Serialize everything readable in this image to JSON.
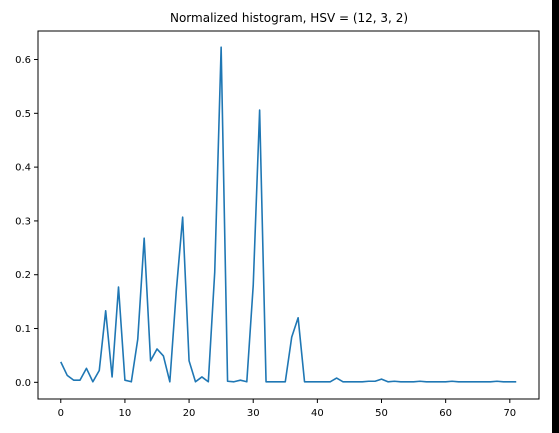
{
  "chart_data": {
    "type": "line",
    "title": "Normalized histogram, HSV = (12, 3, 2)",
    "xlabel": "",
    "ylabel": "",
    "xlim": [
      -3.55,
      74.55
    ],
    "ylim": [
      -0.031,
      0.653
    ],
    "xticks": [
      0,
      10,
      20,
      30,
      40,
      50,
      60,
      70
    ],
    "yticks": [
      0.0,
      0.1,
      0.2,
      0.3,
      0.4,
      0.5,
      0.6
    ],
    "ytick_labels": [
      "0.0",
      "0.1",
      "0.2",
      "0.3",
      "0.4",
      "0.5",
      "0.6"
    ],
    "grid": false,
    "series_color": "#1f77b4",
    "series": [
      {
        "x": [
          0,
          1,
          2,
          3,
          4,
          5,
          6,
          7,
          8,
          9,
          10,
          11,
          12,
          13,
          14,
          15,
          16,
          17,
          18,
          19,
          20,
          21,
          22,
          23,
          24,
          25,
          26,
          27,
          28,
          29,
          30,
          31,
          32,
          33,
          34,
          35,
          36,
          37,
          38,
          39,
          40,
          41,
          42,
          43,
          44,
          45,
          46,
          47,
          48,
          49,
          50,
          51,
          52,
          53,
          54,
          55,
          56,
          57,
          58,
          59,
          60,
          61,
          62,
          63,
          64,
          65,
          66,
          67,
          68,
          69,
          70,
          71
        ],
        "values": [
          0.038,
          0.013,
          0.004,
          0.004,
          0.026,
          0.001,
          0.022,
          0.133,
          0.01,
          0.177,
          0.004,
          0.001,
          0.08,
          0.268,
          0.04,
          0.062,
          0.049,
          0.001,
          0.169,
          0.307,
          0.04,
          0.001,
          0.01,
          0.001,
          0.205,
          0.623,
          0.002,
          0.001,
          0.004,
          0.001,
          0.18,
          0.506,
          0.001,
          0.001,
          0.001,
          0.001,
          0.084,
          0.12,
          0.001,
          0.001,
          0.001,
          0.001,
          0.001,
          0.008,
          0.001,
          0.001,
          0.001,
          0.001,
          0.002,
          0.002,
          0.006,
          0.001,
          0.002,
          0.001,
          0.001,
          0.001,
          0.002,
          0.001,
          0.001,
          0.001,
          0.001,
          0.002,
          0.001,
          0.001,
          0.001,
          0.001,
          0.001,
          0.001,
          0.002,
          0.001,
          0.001,
          0.001
        ]
      }
    ]
  }
}
